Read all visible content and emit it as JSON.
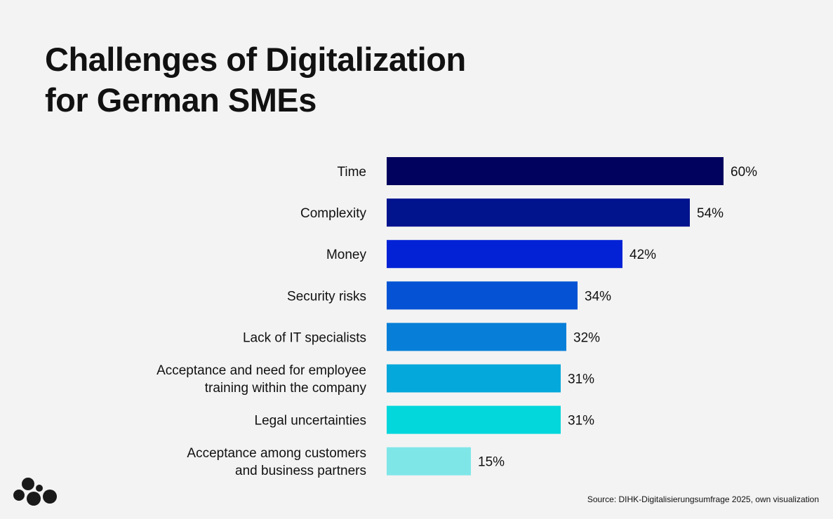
{
  "title_lines": [
    "Challenges of Digitalization",
    "for German SMEs"
  ],
  "source": "Source: DIHK-Digitalisierungsumfrage 2025, own visualization",
  "logo_icon": "dots-logo-icon",
  "chart_data": {
    "type": "bar",
    "orientation": "horizontal",
    "title": "Challenges of Digitalization for German SMEs",
    "categories": [
      [
        "Time"
      ],
      [
        "Complexity"
      ],
      [
        "Money"
      ],
      [
        "Security risks"
      ],
      [
        "Lack of IT specialists"
      ],
      [
        "Acceptance and need for employee",
        "training within the company"
      ],
      [
        "Legal uncertainties"
      ],
      [
        "Acceptance among customers",
        "and business partners"
      ]
    ],
    "values": [
      60,
      54,
      42,
      34,
      32,
      31,
      31,
      15
    ],
    "value_labels": [
      "60%",
      "54%",
      "42%",
      "34%",
      "32%",
      "31%",
      "31%",
      "15%"
    ],
    "colors": [
      "#01015e",
      "#02138e",
      "#0322d6",
      "#0553d4",
      "#077fd8",
      "#04a8da",
      "#04d7db",
      "#7fe6e8"
    ],
    "xlim": [
      0,
      60
    ],
    "unit": "%",
    "grid": false,
    "legend": "none"
  }
}
